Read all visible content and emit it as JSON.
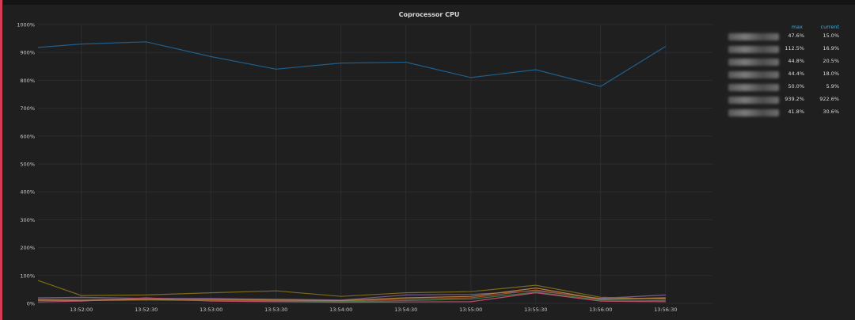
{
  "panel": {
    "title": "Coprocessor CPU"
  },
  "legend": {
    "headers": {
      "max": "max",
      "current": "current"
    },
    "rows": [
      {
        "max": "47.6%",
        "current": "15.0%"
      },
      {
        "max": "112.5%",
        "current": "16.9%"
      },
      {
        "max": "44.8%",
        "current": "20.5%"
      },
      {
        "max": "44.4%",
        "current": "18.0%"
      },
      {
        "max": "50.0%",
        "current": "5.9%"
      },
      {
        "max": "939.2%",
        "current": "922.6%"
      },
      {
        "max": "41.8%",
        "current": "30.6%"
      }
    ]
  },
  "chart_data": {
    "type": "line",
    "title": "Coprocessor CPU",
    "xlabel": "",
    "ylabel": "",
    "x": [
      "13:51:40",
      "13:52:00",
      "13:52:30",
      "13:53:00",
      "13:53:30",
      "13:54:00",
      "13:54:30",
      "13:55:00",
      "13:55:30",
      "13:56:00",
      "13:56:30"
    ],
    "x_ticks": [
      "13:52:00",
      "13:52:30",
      "13:53:00",
      "13:53:30",
      "13:54:00",
      "13:54:30",
      "13:55:00",
      "13:55:30",
      "13:56:00",
      "13:56:30"
    ],
    "y_ticks": [
      "0%",
      "100%",
      "200%",
      "300%",
      "400%",
      "500%",
      "600%",
      "700%",
      "800%",
      "900%",
      "1000%"
    ],
    "ylim": [
      0,
      1000
    ],
    "grid": true,
    "legend_position": "right",
    "series": [
      {
        "color": "#1f5f8b",
        "values": [
          918,
          930,
          938,
          885,
          840,
          862,
          865,
          810,
          838,
          778,
          922
        ]
      },
      {
        "color": "#7a6a1a",
        "values": [
          82,
          28,
          30,
          38,
          45,
          25,
          38,
          42,
          65,
          22,
          15
        ]
      },
      {
        "color": "#7c5a8c",
        "values": [
          20,
          22,
          18,
          18,
          15,
          12,
          30,
          32,
          45,
          18,
          30
        ]
      },
      {
        "color": "#a0522d",
        "values": [
          15,
          15,
          15,
          12,
          10,
          8,
          15,
          20,
          48,
          15,
          18
        ]
      },
      {
        "color": "#3c7a4a",
        "values": [
          10,
          10,
          12,
          10,
          8,
          6,
          10,
          15,
          40,
          12,
          10
        ]
      },
      {
        "color": "#c04a6a",
        "values": [
          5,
          8,
          20,
          8,
          6,
          4,
          5,
          6,
          38,
          8,
          6
        ]
      },
      {
        "color": "#b08040",
        "values": [
          12,
          10,
          14,
          14,
          12,
          10,
          20,
          25,
          55,
          15,
          20
        ]
      }
    ]
  }
}
